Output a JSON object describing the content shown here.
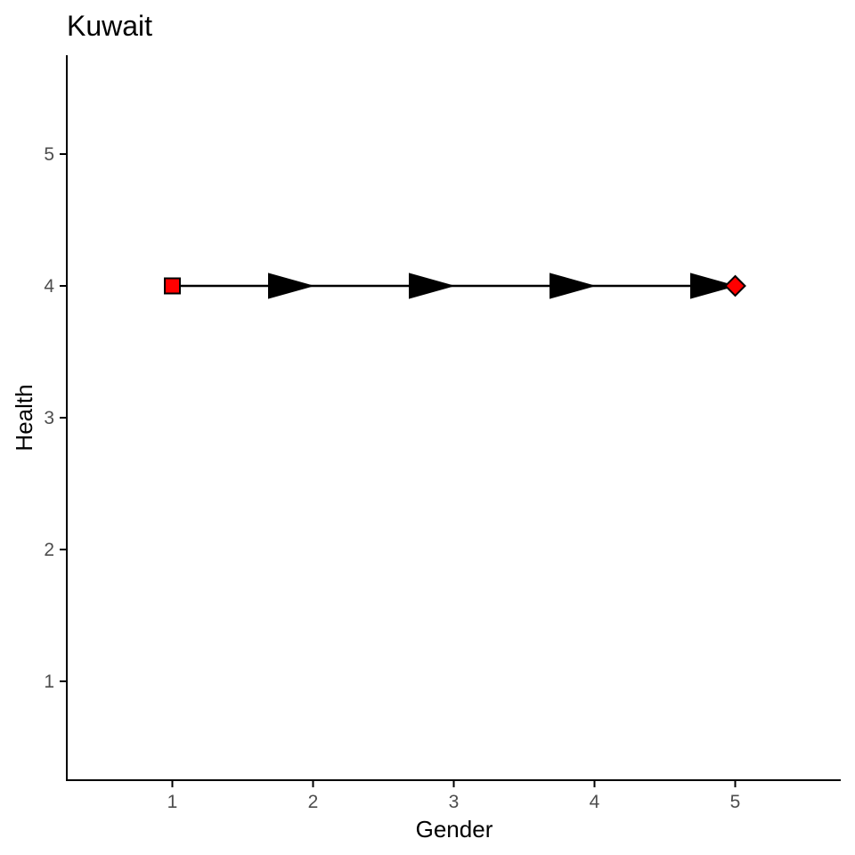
{
  "chart_data": {
    "type": "line",
    "title": "Kuwait",
    "xlabel": "Gender",
    "ylabel": "Health",
    "xlim": [
      0.25,
      5.75
    ],
    "ylim": [
      0.25,
      5.75
    ],
    "x_ticks": [
      "1",
      "2",
      "3",
      "4",
      "5"
    ],
    "y_ticks": [
      "1",
      "2",
      "3",
      "4",
      "5"
    ],
    "grid": false,
    "legend": "none",
    "series": [
      {
        "points": [
          {
            "x": 1,
            "y": 4
          },
          {
            "x": 2,
            "y": 4
          },
          {
            "x": 3,
            "y": 4
          },
          {
            "x": 4,
            "y": 4
          },
          {
            "x": 5,
            "y": 4
          }
        ],
        "start_marker": "square",
        "end_marker": "diamond",
        "marker_color": "#ff0000",
        "line_color": "#000000",
        "arrows": "at each segment end"
      }
    ]
  }
}
